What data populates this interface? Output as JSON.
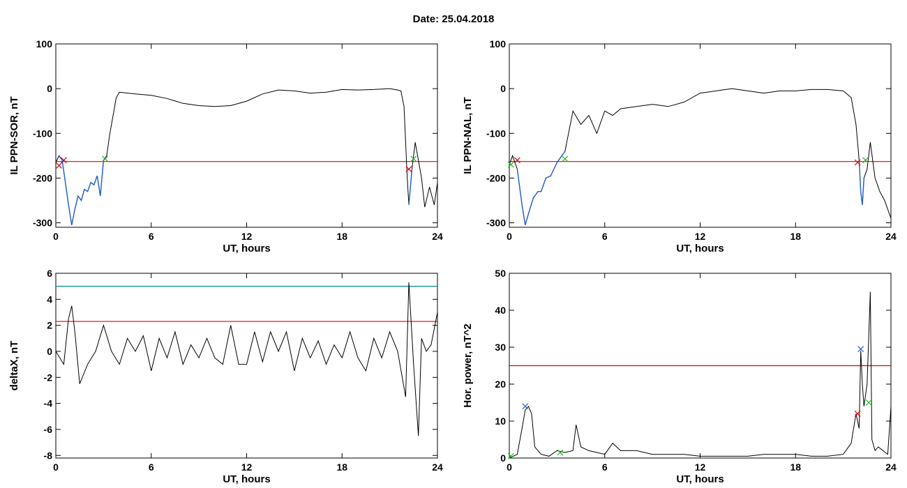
{
  "header": {
    "date": "Date:  25.04.2018"
  },
  "colors": {
    "data_line": "#000000",
    "threshold": "#e00000",
    "threshold2": "#008b8b",
    "segment": "#1f5fd0",
    "marker_red": "#e00000",
    "marker_green": "#22b822",
    "marker_blue": "#1f5fd0"
  },
  "chart_data": [
    {
      "id": "il-sor",
      "type": "line",
      "ylabel": "IL PPN-SOR, nT",
      "xlabel": "UT, hours",
      "xlim": [
        0,
        24
      ],
      "ylim": [
        -310,
        100
      ],
      "xticks": [
        0,
        6,
        12,
        18,
        24
      ],
      "yticks": [
        100,
        0,
        -100,
        -200,
        -300
      ],
      "series": [
        {
          "x": [
            0,
            0.2,
            0.4,
            0.6,
            0.8,
            1.0,
            1.2,
            1.4,
            1.6,
            1.8,
            2.0,
            2.2,
            2.4,
            2.6,
            2.8,
            3.0,
            3.2,
            3.4,
            3.6,
            3.8,
            4,
            5,
            6,
            7,
            8,
            9,
            10,
            11,
            12,
            13,
            14,
            15,
            16,
            17,
            18,
            19,
            20,
            21,
            21.5,
            21.7,
            21.9,
            22.0,
            22.1,
            22.2,
            22.4,
            22.6,
            22.8,
            23,
            23.2,
            23.5,
            23.8,
            24
          ],
          "y": [
            -165,
            -150,
            -160,
            -210,
            -260,
            -305,
            -270,
            -240,
            -250,
            -225,
            -230,
            -210,
            -215,
            -195,
            -240,
            -160,
            -150,
            -100,
            -60,
            -20,
            -8,
            -12,
            -15,
            -22,
            -33,
            -38,
            -40,
            -38,
            -28,
            -12,
            -3,
            -5,
            -10,
            -8,
            -2,
            -3,
            -2,
            0,
            -3,
            -5,
            -40,
            -120,
            -200,
            -260,
            -180,
            -120,
            -160,
            -200,
            -265,
            -220,
            -260,
            -210
          ]
        }
      ],
      "threshold": -163,
      "markers": [
        {
          "x": 0.2,
          "y": -172,
          "color": "red"
        },
        {
          "x": 0.5,
          "y": -160,
          "color": "red"
        },
        {
          "x": 3.1,
          "y": -157,
          "color": "green"
        },
        {
          "x": 22.2,
          "y": -180,
          "color": "red"
        },
        {
          "x": 22.5,
          "y": -157,
          "color": "green"
        }
      ],
      "segments": [
        {
          "from": 0.2,
          "to": 3.1
        },
        {
          "from": 22.2,
          "to": 22.5
        }
      ]
    },
    {
      "id": "il-nal",
      "type": "line",
      "ylabel": "IL PPN-NAL, nT",
      "xlabel": "UT, hours",
      "xlim": [
        0,
        24
      ],
      "ylim": [
        -310,
        100
      ],
      "xticks": [
        0,
        6,
        12,
        18,
        24
      ],
      "yticks": [
        100,
        0,
        -100,
        -200,
        -300
      ],
      "series": [
        {
          "x": [
            0,
            0.2,
            0.5,
            0.8,
            1.0,
            1.2,
            1.5,
            1.8,
            2.0,
            2.3,
            2.6,
            3.0,
            3.3,
            3.5,
            4.0,
            4.5,
            5.0,
            5.5,
            6.0,
            6.5,
            7,
            8,
            9,
            10,
            11,
            12,
            13,
            14,
            15,
            16,
            17,
            18,
            19,
            20,
            21,
            21.5,
            21.8,
            22.0,
            22.1,
            22.2,
            22.3,
            22.5,
            22.7,
            23,
            23.3,
            23.6,
            24
          ],
          "y": [
            -170,
            -150,
            -180,
            -260,
            -305,
            -280,
            -245,
            -230,
            -230,
            -200,
            -195,
            -165,
            -150,
            -140,
            -50,
            -80,
            -60,
            -100,
            -50,
            -60,
            -45,
            -40,
            -35,
            -40,
            -30,
            -10,
            -5,
            0,
            -5,
            -10,
            -5,
            -5,
            -2,
            -2,
            -5,
            -20,
            -80,
            -160,
            -230,
            -260,
            -200,
            -180,
            -120,
            -200,
            -230,
            -250,
            -290
          ]
        }
      ],
      "threshold": -163,
      "markers": [
        {
          "x": 0.1,
          "y": -170,
          "color": "green"
        },
        {
          "x": 0.5,
          "y": -160,
          "color": "red"
        },
        {
          "x": 3.5,
          "y": -157,
          "color": "green"
        },
        {
          "x": 21.9,
          "y": -165,
          "color": "red"
        },
        {
          "x": 22.4,
          "y": -160,
          "color": "green"
        }
      ],
      "segments": [
        {
          "from": 0.5,
          "to": 3.5
        },
        {
          "from": 21.9,
          "to": 22.4
        }
      ]
    },
    {
      "id": "deltax",
      "type": "line",
      "ylabel": "deltaX, nT",
      "xlabel": "UT, hours",
      "xlim": [
        0,
        24
      ],
      "ylim": [
        -8.2,
        6
      ],
      "xticks": [
        0,
        6,
        12,
        18,
        24
      ],
      "yticks": [
        6,
        4,
        2,
        0,
        -2,
        -4,
        -6,
        -8
      ],
      "series": [
        {
          "x": [
            0,
            0.5,
            0.8,
            1.0,
            1.2,
            1.5,
            2.0,
            2.5,
            3.0,
            3.5,
            4.0,
            4.5,
            5.0,
            5.5,
            6.0,
            6.5,
            7.0,
            7.5,
            8.0,
            8.5,
            9.0,
            9.5,
            10.0,
            10.5,
            11.0,
            11.5,
            12.0,
            12.5,
            13.0,
            13.5,
            14.0,
            14.5,
            15.0,
            15.5,
            16.0,
            16.5,
            17.0,
            17.5,
            18.0,
            18.5,
            19.0,
            19.5,
            20.0,
            20.5,
            21.0,
            21.5,
            22.0,
            22.2,
            22.5,
            22.8,
            23.0,
            23.3,
            23.6,
            24
          ],
          "y": [
            0,
            -1,
            2.5,
            3.5,
            1.5,
            -2.5,
            -1,
            0,
            2,
            0,
            -1,
            1.0,
            0,
            1.2,
            -1.5,
            1.0,
            -0.5,
            1.5,
            -1.0,
            0.5,
            -0.5,
            1.0,
            -0.5,
            -1.0,
            2.0,
            -1.0,
            -1.0,
            1.5,
            -0.8,
            1.5,
            0.0,
            1.5,
            -1.5,
            1.0,
            -0.5,
            0.8,
            -1.0,
            0.5,
            -0.5,
            1.5,
            -0.5,
            -1.5,
            1.0,
            -0.5,
            1.5,
            0.0,
            -3.5,
            5.3,
            -1.0,
            -6.5,
            1.0,
            0.0,
            0.5,
            3.0
          ]
        }
      ],
      "thresholds": [
        {
          "y": 5.0,
          "color": "teal"
        },
        {
          "y": 2.3,
          "color": "red"
        }
      ]
    },
    {
      "id": "hor-power",
      "type": "line",
      "ylabel": "Hor. power, nT^2",
      "xlabel": "UT, hours",
      "xlim": [
        0,
        24
      ],
      "ylim": [
        0,
        50
      ],
      "xticks": [
        0,
        6,
        12,
        18,
        24
      ],
      "yticks": [
        50,
        40,
        30,
        20,
        10,
        0
      ],
      "series": [
        {
          "x": [
            0,
            0.5,
            0.8,
            1.0,
            1.2,
            1.4,
            1.6,
            2.0,
            2.5,
            3.0,
            3.5,
            4.0,
            4.2,
            4.5,
            5.0,
            5.5,
            6.0,
            6.5,
            7.0,
            8,
            9,
            10,
            11,
            12,
            13,
            14,
            15,
            16,
            17,
            18,
            19,
            20,
            21,
            21.5,
            21.8,
            22.0,
            22.1,
            22.2,
            22.3,
            22.5,
            22.7,
            22.8,
            23.0,
            23.2,
            23.5,
            23.8,
            24
          ],
          "y": [
            0,
            1,
            8,
            13,
            14,
            12,
            3,
            1,
            0.5,
            2,
            1.5,
            2,
            9,
            3,
            2,
            1.5,
            1,
            4,
            2,
            2,
            1,
            1,
            1,
            0.5,
            0.5,
            0.5,
            0.5,
            1,
            1,
            1,
            0.5,
            0.5,
            1,
            4,
            12,
            8,
            29,
            20,
            14,
            20,
            45,
            5,
            2,
            3,
            2,
            1,
            14
          ]
        }
      ],
      "threshold": 25,
      "markers": [
        {
          "x": 0.1,
          "y": 0.5,
          "color": "green"
        },
        {
          "x": 1.0,
          "y": 14,
          "color": "blue"
        },
        {
          "x": 3.2,
          "y": 1.5,
          "color": "green"
        },
        {
          "x": 21.9,
          "y": 12,
          "color": "red"
        },
        {
          "x": 22.1,
          "y": 29.5,
          "color": "blue"
        },
        {
          "x": 22.6,
          "y": 15,
          "color": "green"
        }
      ]
    }
  ]
}
